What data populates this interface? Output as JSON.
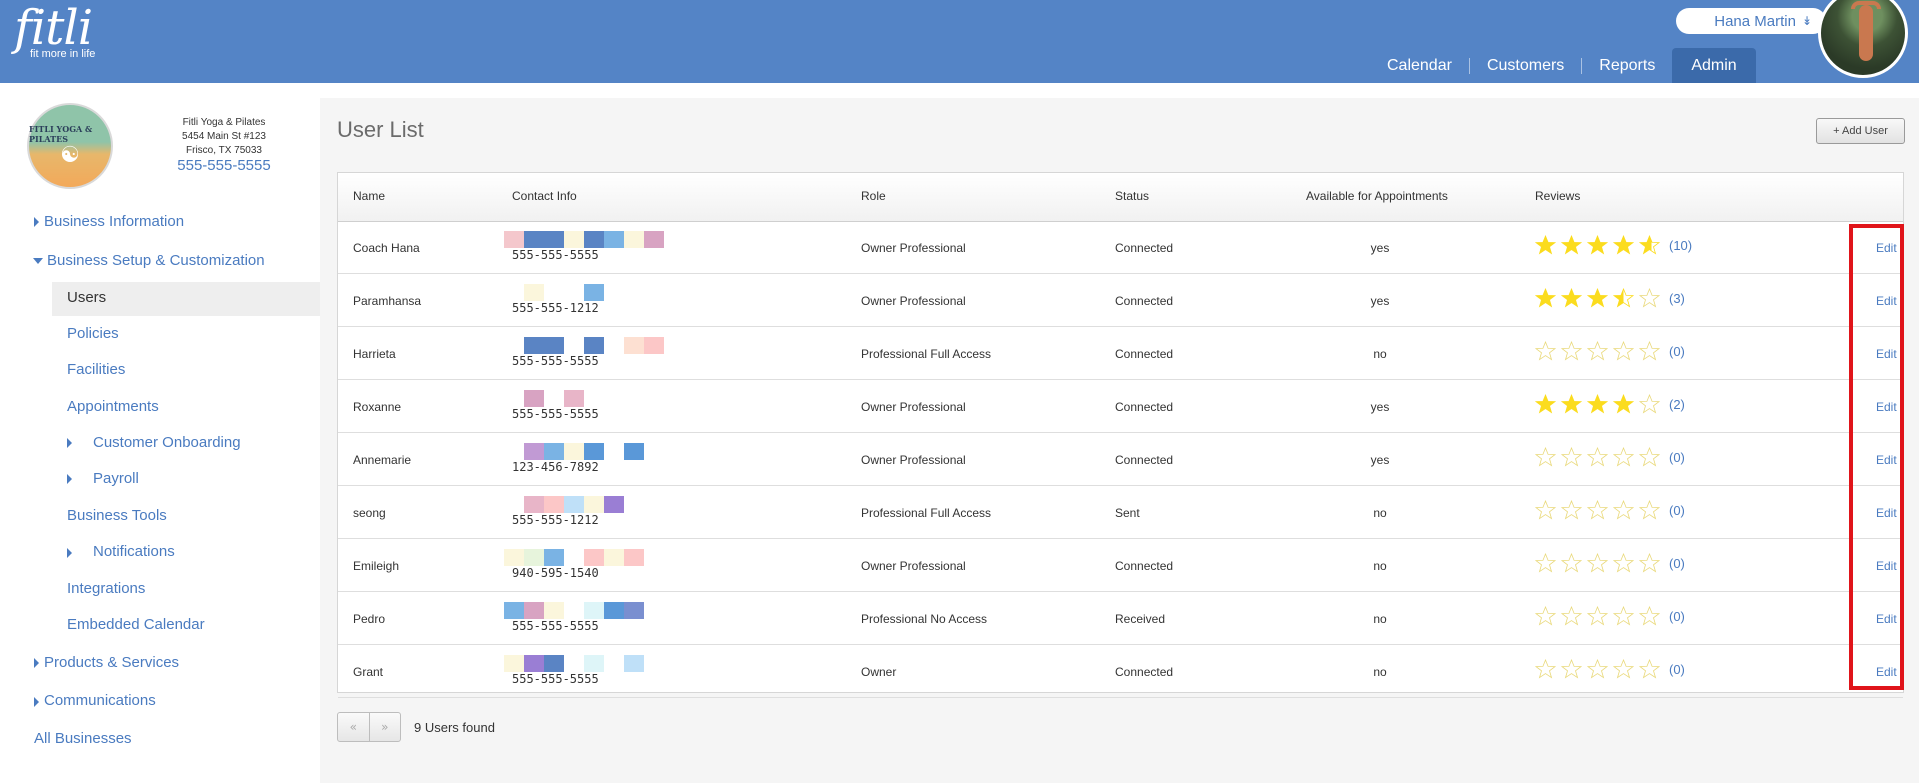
{
  "header": {
    "logo_word": "fitli",
    "logo_tagline": "fit more in life",
    "user_name": "Hana Martin",
    "nav": [
      {
        "label": "Calendar"
      },
      {
        "label": "Customers"
      },
      {
        "label": "Reports"
      },
      {
        "label": "Admin",
        "active": true
      }
    ]
  },
  "business": {
    "logo_text": "FITLI YOGA & PILATES",
    "name": "Fitli Yoga & Pilates",
    "address1": "5454 Main St #123",
    "address2": "Frisco, TX 75033",
    "phone": "555-555-5555"
  },
  "sidebar": {
    "items": [
      {
        "label": "Business Information"
      },
      {
        "label": "Business Setup & Customization"
      },
      {
        "label": "Users"
      },
      {
        "label": "Policies"
      },
      {
        "label": "Facilities"
      },
      {
        "label": "Appointments"
      },
      {
        "label": "Customer Onboarding"
      },
      {
        "label": "Payroll"
      },
      {
        "label": "Business Tools"
      },
      {
        "label": "Notifications"
      },
      {
        "label": "Integrations"
      },
      {
        "label": "Embedded Calendar"
      },
      {
        "label": "Products & Services"
      },
      {
        "label": "Communications"
      },
      {
        "label": "All Businesses"
      }
    ]
  },
  "main": {
    "title": "User List",
    "add_user_label": "+ Add User",
    "columns": [
      "Name",
      "Contact Info",
      "Role",
      "Status",
      "Available for Appointments",
      "Reviews",
      ""
    ],
    "rows": [
      {
        "name": "Coach Hana",
        "phone": "555-555-5555",
        "role": "Owner Professional",
        "status": "Connected",
        "available": "yes",
        "rating": 4.6,
        "reviews": "(10)",
        "edit": "Edit",
        "mosaic": [
          "#f4c7cc",
          "#5a84c4",
          "#5a84c4",
          "#fbf6dc",
          "#5a84c4",
          "#7ab3e4",
          "#fbf6dc",
          "#d8a3c2"
        ]
      },
      {
        "name": "Paramhansa",
        "phone": "555-555-1212",
        "role": "Owner Professional",
        "status": "Connected",
        "available": "yes",
        "rating": 3.5,
        "reviews": "(3)",
        "edit": "Edit",
        "mosaic": [
          "#ffffff",
          "#fbf6dc",
          "#ffffff",
          "#ffffff",
          "#7ab3e4"
        ]
      },
      {
        "name": "Harrieta",
        "phone": "555-555-5555",
        "role": "Professional Full Access",
        "status": "Connected",
        "available": "no",
        "rating": 0,
        "reviews": "(0)",
        "edit": "Edit",
        "mosaic": [
          "#ffffff",
          "#5a84c4",
          "#5a84c4",
          "#ffffff",
          "#5a84c4",
          "#ffffff",
          "#fde0d2",
          "#fcc7c7"
        ]
      },
      {
        "name": "Roxanne",
        "phone": "555-555-5555",
        "role": "Owner Professional",
        "status": "Connected",
        "available": "yes",
        "rating": 4,
        "reviews": "(2)",
        "edit": "Edit",
        "mosaic": [
          "#ffffff",
          "#d8a3c2",
          "#ffffff",
          "#e8b5c8"
        ]
      },
      {
        "name": "Annemarie",
        "phone": "123-456-7892",
        "role": "Owner Professional",
        "status": "Connected",
        "available": "yes",
        "rating": 0,
        "reviews": "(0)",
        "edit": "Edit",
        "mosaic": [
          "#ffffff",
          "#c19ad4",
          "#7ab3e4",
          "#fbf6dc",
          "#5a98d8",
          "#ffffff",
          "#5a98d8"
        ]
      },
      {
        "name": "seong",
        "phone": "555-555-1212",
        "role": "Professional Full Access",
        "status": "Sent",
        "available": "no",
        "rating": 0,
        "reviews": "(0)",
        "edit": "Edit",
        "mosaic": [
          "#ffffff",
          "#e8b5c8",
          "#fcc7c7",
          "#bfe0f8",
          "#fbf6dc",
          "#9a7ed4"
        ]
      },
      {
        "name": "Emileigh",
        "phone": "940-595-1540",
        "role": "Owner Professional",
        "status": "Connected",
        "available": "no",
        "rating": 0,
        "reviews": "(0)",
        "edit": "Edit",
        "mosaic": [
          "#fbf6dc",
          "#e7f4dc",
          "#7ab3e4",
          "#ffffff",
          "#fcc7c7",
          "#fbf6dc",
          "#fcc7c7"
        ]
      },
      {
        "name": "Pedro",
        "phone": "555-555-5555",
        "role": "Professional No Access",
        "status": "Received",
        "available": "no",
        "rating": 0,
        "reviews": "(0)",
        "edit": "Edit",
        "mosaic": [
          "#7ab3e4",
          "#d8a3c2",
          "#fbf6dc",
          "#ffffff",
          "#def5f8",
          "#5a98d8",
          "#7a8fd0"
        ]
      },
      {
        "name": "Grant",
        "phone": "555-555-5555",
        "role": "Owner",
        "status": "Connected",
        "available": "no",
        "rating": 0,
        "reviews": "(0)",
        "edit": "Edit",
        "mosaic": [
          "#fbf6dc",
          "#9a7ed4",
          "#5a84c4",
          "#ffffff",
          "#def5f8",
          "#ffffff",
          "#bfe0f8"
        ]
      }
    ],
    "pager_prev": "«",
    "pager_next": "»",
    "found_text": "9 Users found"
  },
  "colors": {
    "header_bg": "#5484c6",
    "link": "#4a7bc0",
    "star": "#fbdc1e",
    "highlight": "#e0141a"
  }
}
